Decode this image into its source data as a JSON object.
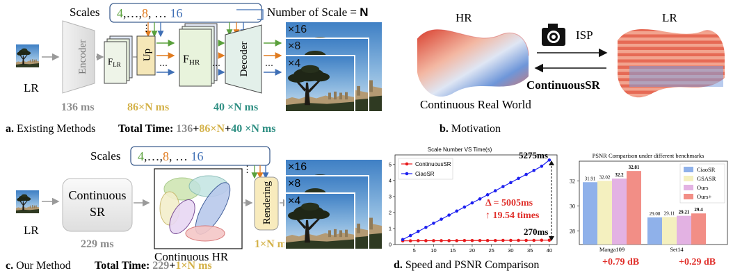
{
  "colors": {
    "gray_text": "#8c8c8c",
    "gold": "#d4b24a",
    "teal": "#2f8f83",
    "green_num": "#5aa03c",
    "orange_num": "#e07b1f",
    "blue_num": "#3f6fb5",
    "red": "#e0302b",
    "arrow_green": "#5aa03c",
    "arrow_orange": "#e07b1f",
    "arrow_blue": "#3f6fb5",
    "arrow_gray": "#9a9a9a",
    "ciaosr_blue": "#8fb1ea",
    "gsasr_yellow": "#f4f0bf",
    "ours_pink": "#e3b2e3",
    "oursplus_red": "#f28e86"
  },
  "panel_a": {
    "scales_label": "Scales",
    "scale_green": "4",
    "scale_sep1": ",…,",
    "scale_orange": "8",
    "scale_sep2": ", … ",
    "scale_blue": "16",
    "number_of_scale": "Number of Scale = ",
    "number_of_scale_N": "N",
    "lr_label": "LR",
    "encoder_label": "Encoder",
    "flr_main": "F",
    "flr_sub": "LR",
    "up_label": "Up",
    "fhr_main": "F",
    "fhr_sub": "HR",
    "decoder_label": "Decoder",
    "dots": "⋯",
    "vdots": "⋮",
    "time_encoder": "136 ms",
    "time_up": "86×N ms",
    "time_decoder": "40 ×N ms",
    "out_x16": "×16",
    "out_x8": "×8",
    "out_x4": "×4",
    "caption_letter": "a.",
    "caption_text": " Existing Methods",
    "total_label": "Total Time: ",
    "total_p1": "136",
    "total_plus1": "+",
    "total_p2": "86×N",
    "total_plus2": "+",
    "total_p3": "40 ×N ms"
  },
  "panel_b": {
    "hr_label": "HR",
    "lr_label": "LR",
    "isp_label": "ISP",
    "continuous_sr": "ContinuousSR",
    "real_world": "Continuous Real World",
    "caption_letter": "b.",
    "caption_text": " Motivation"
  },
  "panel_c": {
    "scales_label": "Scales",
    "scale_green": "4",
    "scale_sep1": ",…,",
    "scale_orange": "8",
    "scale_sep2": ", … ",
    "scale_blue": "16",
    "lr_label": "LR",
    "continuous_sr_line1": "Continuous",
    "continuous_sr_line2": "SR",
    "time_csr": "229 ms",
    "continuous_hr": "Continuous HR",
    "rendering_label": "Rendering",
    "time_render": "1×N ms",
    "out_x16": "×16",
    "out_x8": "×8",
    "out_x4": "×4",
    "vdots": "⋮",
    "caption_letter": "c.",
    "caption_text": " Our Method",
    "total_label": "Total Time: ",
    "total_p1": "229",
    "total_plus": "+",
    "total_p2": "1×N ms"
  },
  "panel_d": {
    "caption_letter": "d.",
    "caption_text": " Speed and PSNR Comparison",
    "speed_annot_top": "5275ms",
    "speed_annot_bottom": "270ms",
    "delta_line": "Δ = 5005ms",
    "times_line": "↑ 19.54 times",
    "bar_gain_1": "+0.79 dB",
    "bar_gain_2": "+0.29 dB"
  },
  "chart_data": [
    {
      "type": "line",
      "title": "Scale Number VS Time(s)",
      "xlabel": "",
      "ylabel": "",
      "xlim": [
        0,
        42
      ],
      "ylim": [
        0,
        5.6
      ],
      "xticks": [
        5,
        10,
        15,
        20,
        25,
        30,
        35,
        40
      ],
      "yticks": [
        0,
        1,
        2,
        3,
        4,
        5
      ],
      "legend": "top-left",
      "x": [
        2,
        4,
        6,
        8,
        10,
        12,
        14,
        16,
        18,
        20,
        22,
        24,
        26,
        28,
        30,
        32,
        34,
        36,
        38,
        40
      ],
      "series": [
        {
          "name": "ContinuousSR",
          "color": "#e8191b",
          "values": [
            0.23,
            0.23,
            0.24,
            0.24,
            0.24,
            0.24,
            0.24,
            0.24,
            0.25,
            0.25,
            0.25,
            0.25,
            0.25,
            0.26,
            0.26,
            0.26,
            0.26,
            0.26,
            0.27,
            0.27
          ]
        },
        {
          "name": "CiaoSR",
          "color": "#1c1ff0",
          "values": [
            0.31,
            0.56,
            0.82,
            1.07,
            1.33,
            1.58,
            1.84,
            2.09,
            2.34,
            2.6,
            2.85,
            3.11,
            3.36,
            3.62,
            3.87,
            4.13,
            4.38,
            4.63,
            4.89,
            5.28
          ]
        }
      ]
    },
    {
      "type": "bar",
      "title": "PSNR Comparison under different benchmarks",
      "xlabel": "",
      "ylabel": "",
      "ylim": [
        26.9,
        33.6
      ],
      "yticks": [
        28,
        30,
        32
      ],
      "legend": "top-right",
      "categories": [
        "Manga109",
        "Set14"
      ],
      "series": [
        {
          "name": "CiaoSR",
          "color": "#8fb1ea",
          "values": [
            31.91,
            29.08
          ],
          "labels": [
            "31.91",
            "29.08"
          ]
        },
        {
          "name": "GSASR",
          "color": "#f4f0bf",
          "values": [
            32.02,
            29.11
          ],
          "labels": [
            "32.02",
            "29.11"
          ]
        },
        {
          "name": "Ours",
          "color": "#e3b2e3",
          "values": [
            32.2,
            29.21
          ],
          "labels": [
            "32.2",
            "29.21"
          ]
        },
        {
          "name": "Ours+",
          "color": "#f28e86",
          "values": [
            32.81,
            29.4
          ],
          "labels": [
            "32.81",
            "29.4"
          ]
        }
      ]
    }
  ]
}
